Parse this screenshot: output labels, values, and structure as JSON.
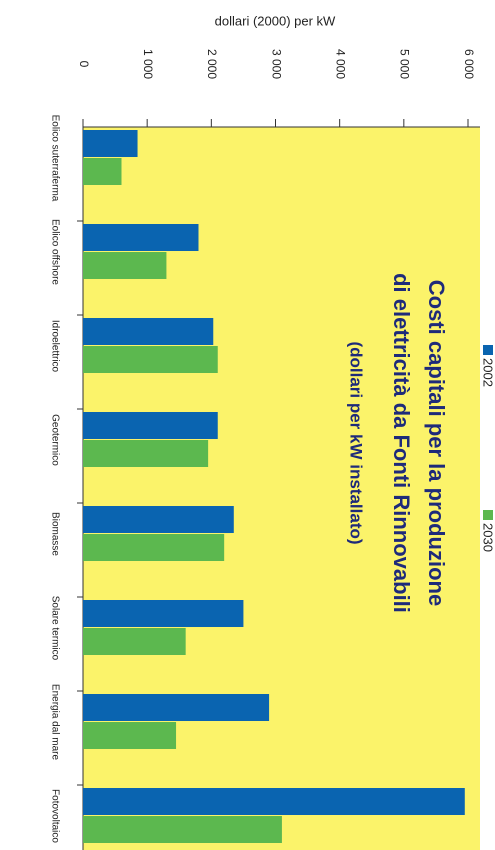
{
  "chart_data": {
    "type": "bar",
    "title": [
      "Costi capitali per la produzione",
      "di elettricità da Fonti Rinnovabili"
    ],
    "subtitle": "(dollari per kW installato)",
    "y_label": "dollari (2000) per kW",
    "categories": [
      "Eolico suterraferma",
      "Eolico offshore",
      "Idroelettrico",
      "Geotermico",
      "Biomasse",
      "Solare termico",
      "Energia dal mare",
      "Fotovoltaico"
    ],
    "series": [
      {
        "name": "2002",
        "color": "#0a64b0",
        "values": [
          850,
          1800,
          2030,
          2100,
          2350,
          2500,
          2900,
          5950
        ]
      },
      {
        "name": "2030",
        "color": "#5cb84f",
        "values": [
          600,
          1300,
          2100,
          1950,
          2200,
          1600,
          1450,
          3100
        ]
      }
    ],
    "ylim": [
      0,
      6000
    ],
    "yticks": [
      0,
      {
        "value": 1000,
        "label": "1 000"
      },
      {
        "value": 2000,
        "label": "2 000"
      },
      {
        "value": 3000,
        "label": "3 000"
      },
      {
        "value": 4000,
        "label": "4 000"
      },
      {
        "value": 5000,
        "label": "5 000"
      },
      {
        "value": 6000,
        "label": "6 000"
      }
    ],
    "background": "#fbf36a"
  }
}
